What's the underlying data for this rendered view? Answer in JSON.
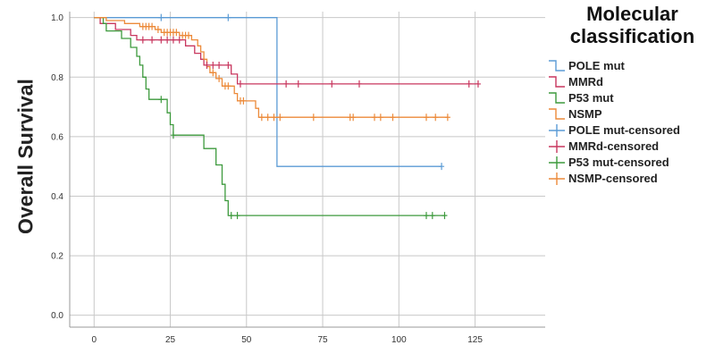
{
  "chart_data": {
    "type": "line",
    "title": "",
    "xlabel": "",
    "ylabel": "Overall Survival",
    "xlim": [
      -8,
      148
    ],
    "ylim": [
      -0.04,
      1.02
    ],
    "xticks": [
      0,
      25,
      50,
      75,
      100,
      125
    ],
    "yticks": [
      0.0,
      0.2,
      0.4,
      0.6,
      0.8,
      1.0
    ],
    "xtick_labels": [
      "0",
      "25",
      "50",
      "75",
      "100",
      "125"
    ],
    "ytick_labels": [
      "0.0",
      "0.2",
      "0.4",
      "0.6",
      "0.8",
      "1.0"
    ],
    "grid": true,
    "legend": {
      "title": "Molecular classification",
      "placement": "right",
      "entries": [
        {
          "label": "POLE mut",
          "marker": "step",
          "color": "#5b9bd5"
        },
        {
          "label": "MMRd",
          "marker": "step",
          "color": "#c8375f"
        },
        {
          "label": "P53 mut",
          "marker": "step",
          "color": "#3d9a3d"
        },
        {
          "label": "NSMP",
          "marker": "step",
          "color": "#ec8a3a"
        },
        {
          "label": "POLE mut-censored",
          "marker": "plus",
          "color": "#5b9bd5"
        },
        {
          "label": "MMRd-censored",
          "marker": "plus",
          "color": "#c8375f"
        },
        {
          "label": "P53 mut-censored",
          "marker": "plus",
          "color": "#3d9a3d"
        },
        {
          "label": "NSMP-censored",
          "marker": "plus",
          "color": "#ec8a3a"
        }
      ]
    },
    "series": [
      {
        "name": "POLE mut",
        "color": "#5b9bd5",
        "steps": [
          [
            0,
            1.0
          ],
          [
            60,
            1.0
          ],
          [
            60,
            0.5
          ],
          [
            114,
            0.5
          ]
        ],
        "censored": [
          [
            22,
            1.0
          ],
          [
            44,
            1.0
          ],
          [
            114,
            0.5
          ]
        ]
      },
      {
        "name": "MMRd",
        "color": "#c8375f",
        "steps": [
          [
            0,
            1.0
          ],
          [
            2,
            1.0
          ],
          [
            2,
            0.98
          ],
          [
            7,
            0.98
          ],
          [
            7,
            0.96
          ],
          [
            12,
            0.96
          ],
          [
            12,
            0.94
          ],
          [
            14,
            0.94
          ],
          [
            14,
            0.925
          ],
          [
            30,
            0.925
          ],
          [
            30,
            0.905
          ],
          [
            33,
            0.905
          ],
          [
            33,
            0.88
          ],
          [
            35,
            0.88
          ],
          [
            35,
            0.86
          ],
          [
            36,
            0.86
          ],
          [
            36,
            0.84
          ],
          [
            45,
            0.84
          ],
          [
            45,
            0.81
          ],
          [
            47,
            0.81
          ],
          [
            47,
            0.777
          ],
          [
            126,
            0.777
          ]
        ],
        "censored": [
          [
            16,
            0.925
          ],
          [
            19,
            0.925
          ],
          [
            22,
            0.925
          ],
          [
            24,
            0.925
          ],
          [
            26,
            0.925
          ],
          [
            28,
            0.925
          ],
          [
            37,
            0.84
          ],
          [
            39,
            0.84
          ],
          [
            41,
            0.84
          ],
          [
            44,
            0.84
          ],
          [
            48,
            0.777
          ],
          [
            63,
            0.777
          ],
          [
            67,
            0.777
          ],
          [
            78,
            0.777
          ],
          [
            87,
            0.777
          ],
          [
            123,
            0.777
          ],
          [
            126,
            0.777
          ]
        ]
      },
      {
        "name": "P53 mut",
        "color": "#3d9a3d",
        "steps": [
          [
            0,
            1.0
          ],
          [
            3,
            1.0
          ],
          [
            3,
            0.98
          ],
          [
            4,
            0.98
          ],
          [
            4,
            0.955
          ],
          [
            9,
            0.955
          ],
          [
            9,
            0.93
          ],
          [
            12,
            0.93
          ],
          [
            12,
            0.9
          ],
          [
            14,
            0.9
          ],
          [
            14,
            0.87
          ],
          [
            15,
            0.87
          ],
          [
            15,
            0.84
          ],
          [
            16,
            0.84
          ],
          [
            16,
            0.8
          ],
          [
            17,
            0.8
          ],
          [
            17,
            0.76
          ],
          [
            18,
            0.76
          ],
          [
            18,
            0.725
          ],
          [
            24,
            0.725
          ],
          [
            24,
            0.68
          ],
          [
            25,
            0.68
          ],
          [
            25,
            0.64
          ],
          [
            26,
            0.64
          ],
          [
            26,
            0.605
          ],
          [
            36,
            0.605
          ],
          [
            36,
            0.56
          ],
          [
            40,
            0.56
          ],
          [
            40,
            0.505
          ],
          [
            42,
            0.505
          ],
          [
            42,
            0.44
          ],
          [
            43,
            0.44
          ],
          [
            43,
            0.385
          ],
          [
            44,
            0.385
          ],
          [
            44,
            0.335
          ],
          [
            115,
            0.335
          ]
        ],
        "censored": [
          [
            22,
            0.725
          ],
          [
            26,
            0.605
          ],
          [
            45,
            0.335
          ],
          [
            47,
            0.335
          ],
          [
            109,
            0.335
          ],
          [
            111,
            0.335
          ],
          [
            115,
            0.335
          ]
        ]
      },
      {
        "name": "NSMP",
        "color": "#ec8a3a",
        "steps": [
          [
            0,
            1.0
          ],
          [
            4,
            1.0
          ],
          [
            4,
            0.99
          ],
          [
            10,
            0.99
          ],
          [
            10,
            0.98
          ],
          [
            15,
            0.98
          ],
          [
            15,
            0.97
          ],
          [
            20,
            0.97
          ],
          [
            20,
            0.96
          ],
          [
            22,
            0.96
          ],
          [
            22,
            0.95
          ],
          [
            28,
            0.95
          ],
          [
            28,
            0.94
          ],
          [
            32,
            0.94
          ],
          [
            32,
            0.925
          ],
          [
            34,
            0.925
          ],
          [
            34,
            0.905
          ],
          [
            35,
            0.905
          ],
          [
            35,
            0.885
          ],
          [
            36,
            0.885
          ],
          [
            36,
            0.86
          ],
          [
            37,
            0.86
          ],
          [
            37,
            0.835
          ],
          [
            38,
            0.835
          ],
          [
            38,
            0.815
          ],
          [
            40,
            0.815
          ],
          [
            40,
            0.795
          ],
          [
            42,
            0.795
          ],
          [
            42,
            0.77
          ],
          [
            46,
            0.77
          ],
          [
            46,
            0.745
          ],
          [
            47,
            0.745
          ],
          [
            47,
            0.72
          ],
          [
            53,
            0.72
          ],
          [
            53,
            0.695
          ],
          [
            54,
            0.695
          ],
          [
            54,
            0.665
          ],
          [
            116,
            0.665
          ]
        ],
        "censored": [
          [
            16,
            0.97
          ],
          [
            17,
            0.97
          ],
          [
            18,
            0.97
          ],
          [
            19,
            0.97
          ],
          [
            21,
            0.96
          ],
          [
            23,
            0.95
          ],
          [
            24,
            0.95
          ],
          [
            25,
            0.95
          ],
          [
            26,
            0.95
          ],
          [
            27,
            0.95
          ],
          [
            29,
            0.94
          ],
          [
            30,
            0.94
          ],
          [
            31,
            0.94
          ],
          [
            39,
            0.815
          ],
          [
            41,
            0.795
          ],
          [
            43,
            0.77
          ],
          [
            44,
            0.77
          ],
          [
            48,
            0.72
          ],
          [
            49,
            0.72
          ],
          [
            55,
            0.665
          ],
          [
            57,
            0.665
          ],
          [
            59,
            0.665
          ],
          [
            61,
            0.665
          ],
          [
            72,
            0.665
          ],
          [
            84,
            0.665
          ],
          [
            85,
            0.665
          ],
          [
            92,
            0.665
          ],
          [
            94,
            0.665
          ],
          [
            98,
            0.665
          ],
          [
            109,
            0.665
          ],
          [
            112,
            0.665
          ],
          [
            116,
            0.665
          ]
        ]
      }
    ]
  }
}
